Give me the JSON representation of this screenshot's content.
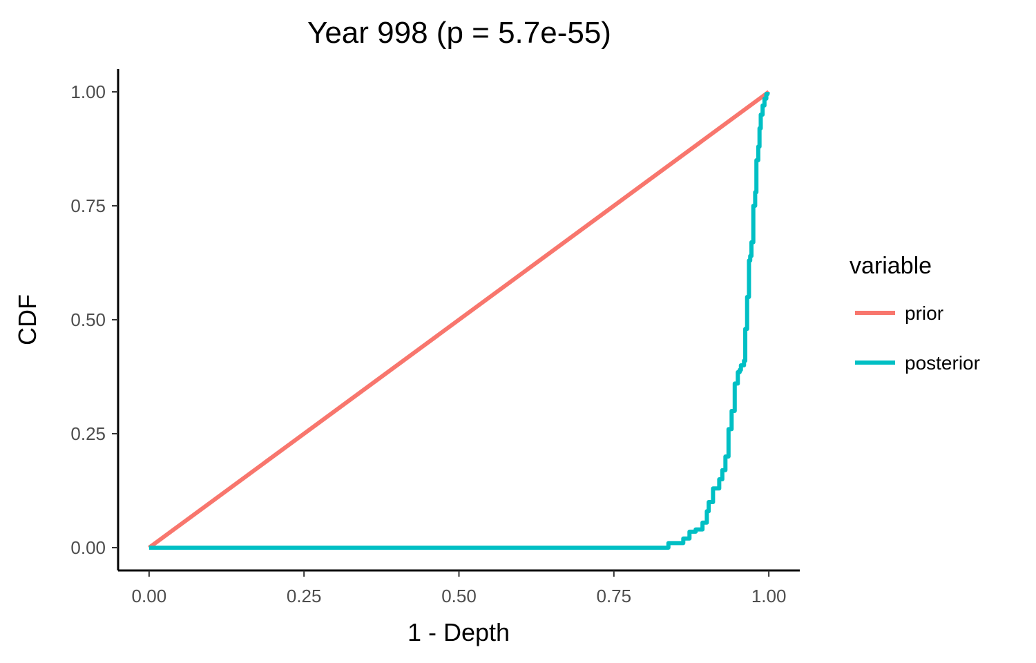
{
  "chart_data": {
    "type": "line",
    "title": "Year 998 (p = 5.7e-55)",
    "xlabel": "1 - Depth",
    "ylabel": "CDF",
    "xlim": [
      -0.05,
      1.05
    ],
    "ylim": [
      -0.05,
      1.05
    ],
    "x_ticks": [
      0,
      0.25,
      0.5,
      0.75,
      1
    ],
    "x_tick_labels": [
      "0.00",
      "0.25",
      "0.50",
      "0.75",
      "1.00"
    ],
    "y_ticks": [
      0,
      0.25,
      0.5,
      0.75,
      1
    ],
    "y_tick_labels": [
      "0.00",
      "0.25",
      "0.50",
      "0.75",
      "1.00"
    ],
    "grid": false,
    "legend": {
      "title": "variable",
      "position": "right"
    },
    "series": [
      {
        "name": "prior",
        "color": "#F8766D",
        "x": [
          0,
          1
        ],
        "y": [
          0,
          1
        ]
      },
      {
        "name": "posterior",
        "color": "#00BFC4",
        "x": [
          0,
          0.835,
          0.838,
          0.86,
          0.862,
          0.87,
          0.872,
          0.88,
          0.882,
          0.89,
          0.893,
          0.9,
          0.903,
          0.91,
          0.915,
          0.92,
          0.925,
          0.93,
          0.935,
          0.94,
          0.945,
          0.95,
          0.953,
          0.955,
          0.958,
          0.96,
          0.962,
          0.965,
          0.968,
          0.97,
          0.972,
          0.975,
          0.978,
          0.98,
          0.983,
          0.985,
          0.987,
          0.99,
          0.993,
          0.996,
          0.998
        ],
        "y": [
          0,
          0,
          0.01,
          0.01,
          0.02,
          0.02,
          0.035,
          0.035,
          0.04,
          0.04,
          0.055,
          0.08,
          0.1,
          0.13,
          0.13,
          0.15,
          0.17,
          0.2,
          0.26,
          0.3,
          0.36,
          0.385,
          0.39,
          0.4,
          0.4,
          0.41,
          0.48,
          0.55,
          0.63,
          0.64,
          0.67,
          0.75,
          0.78,
          0.85,
          0.88,
          0.92,
          0.95,
          0.97,
          0.985,
          0.995,
          1
        ]
      }
    ]
  }
}
